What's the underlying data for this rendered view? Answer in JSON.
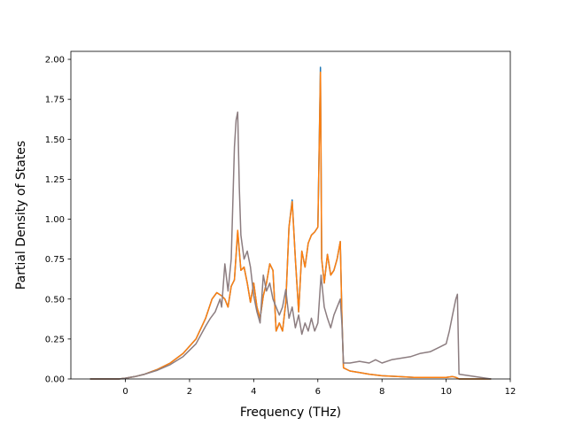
{
  "chart_data": {
    "type": "line",
    "title": "",
    "xlabel": "Frequency (THz)",
    "ylabel": "Partial Density of States",
    "xlim": [
      -1.7,
      12.0
    ],
    "ylim": [
      0.0,
      2.05
    ],
    "xticks": [
      0,
      2,
      4,
      6,
      8,
      10,
      12
    ],
    "xtick_labels": [
      "0",
      "2",
      "4",
      "6",
      "8",
      "10",
      "12"
    ],
    "yticks": [
      0.0,
      0.25,
      0.5,
      0.75,
      1.0,
      1.25,
      1.5,
      1.75,
      2.0
    ],
    "ytick_labels": [
      "0.00",
      "0.25",
      "0.50",
      "0.75",
      "1.00",
      "1.25",
      "1.50",
      "1.75",
      "2.00"
    ],
    "grid": false,
    "legend": "none",
    "series": [
      {
        "color": "#1f77b4",
        "x": [
          -1.1,
          -0.2,
          0.0,
          0.3,
          0.6,
          1.0,
          1.4,
          1.8,
          2.2,
          2.5,
          2.7,
          2.85,
          3.0,
          3.1,
          3.2,
          3.3,
          3.4,
          3.5,
          3.6,
          3.7,
          3.8,
          3.9,
          4.0,
          4.1,
          4.2,
          4.3,
          4.4,
          4.5,
          4.6,
          4.7,
          4.8,
          4.9,
          5.0,
          5.1,
          5.2,
          5.3,
          5.4,
          5.5,
          5.6,
          5.7,
          5.8,
          5.9,
          6.0,
          6.08,
          6.12,
          6.2,
          6.3,
          6.4,
          6.5,
          6.6,
          6.7,
          6.75,
          6.8,
          7.0,
          7.3,
          7.6,
          8.0,
          8.5,
          9.0,
          9.5,
          10.0,
          10.2,
          10.3,
          10.35,
          10.4,
          11.4
        ],
        "y": [
          0.0,
          0.0,
          0.005,
          0.015,
          0.03,
          0.06,
          0.1,
          0.16,
          0.25,
          0.38,
          0.5,
          0.54,
          0.52,
          0.5,
          0.45,
          0.58,
          0.62,
          0.92,
          0.68,
          0.7,
          0.6,
          0.48,
          0.6,
          0.45,
          0.38,
          0.52,
          0.6,
          0.72,
          0.68,
          0.3,
          0.35,
          0.3,
          0.48,
          0.95,
          1.12,
          0.75,
          0.42,
          0.8,
          0.7,
          0.85,
          0.9,
          0.92,
          0.95,
          1.95,
          0.75,
          0.6,
          0.78,
          0.65,
          0.68,
          0.75,
          0.86,
          0.4,
          0.07,
          0.05,
          0.04,
          0.03,
          0.02,
          0.015,
          0.01,
          0.01,
          0.01,
          0.015,
          0.01,
          0.005,
          0.0,
          0.0
        ]
      },
      {
        "color": "#ff7f0e",
        "x": [
          -1.1,
          -0.2,
          0.0,
          0.3,
          0.6,
          1.0,
          1.4,
          1.8,
          2.2,
          2.5,
          2.7,
          2.85,
          3.0,
          3.1,
          3.2,
          3.3,
          3.4,
          3.5,
          3.6,
          3.7,
          3.8,
          3.9,
          4.0,
          4.1,
          4.2,
          4.3,
          4.4,
          4.5,
          4.6,
          4.7,
          4.8,
          4.9,
          5.0,
          5.1,
          5.2,
          5.3,
          5.4,
          5.5,
          5.6,
          5.7,
          5.8,
          5.9,
          6.0,
          6.08,
          6.12,
          6.2,
          6.3,
          6.4,
          6.5,
          6.6,
          6.7,
          6.75,
          6.8,
          7.0,
          7.3,
          7.6,
          8.0,
          8.5,
          9.0,
          9.5,
          10.0,
          10.2,
          10.3,
          10.35,
          10.4,
          11.4
        ],
        "y": [
          0.0,
          0.0,
          0.005,
          0.015,
          0.03,
          0.06,
          0.1,
          0.16,
          0.25,
          0.38,
          0.5,
          0.54,
          0.52,
          0.5,
          0.45,
          0.58,
          0.62,
          0.93,
          0.68,
          0.7,
          0.6,
          0.48,
          0.6,
          0.45,
          0.38,
          0.52,
          0.6,
          0.72,
          0.68,
          0.3,
          0.35,
          0.3,
          0.48,
          0.95,
          1.11,
          0.75,
          0.42,
          0.8,
          0.7,
          0.85,
          0.9,
          0.92,
          0.95,
          1.92,
          0.75,
          0.6,
          0.78,
          0.65,
          0.68,
          0.75,
          0.86,
          0.4,
          0.07,
          0.05,
          0.04,
          0.03,
          0.02,
          0.015,
          0.01,
          0.01,
          0.01,
          0.015,
          0.01,
          0.005,
          0.0,
          0.0
        ]
      },
      {
        "color": "#8c7d80",
        "x": [
          -1.1,
          -0.2,
          0.0,
          0.3,
          0.6,
          1.0,
          1.4,
          1.8,
          2.2,
          2.5,
          2.65,
          2.8,
          2.95,
          3.0,
          3.1,
          3.2,
          3.3,
          3.4,
          3.45,
          3.5,
          3.55,
          3.6,
          3.7,
          3.8,
          3.9,
          4.0,
          4.1,
          4.2,
          4.3,
          4.4,
          4.5,
          4.6,
          4.7,
          4.8,
          4.9,
          5.0,
          5.1,
          5.2,
          5.3,
          5.4,
          5.5,
          5.6,
          5.7,
          5.8,
          5.9,
          6.0,
          6.1,
          6.2,
          6.3,
          6.4,
          6.5,
          6.6,
          6.7,
          6.75,
          6.8,
          7.0,
          7.3,
          7.6,
          7.8,
          8.0,
          8.3,
          8.6,
          8.9,
          9.2,
          9.5,
          9.8,
          10.0,
          10.1,
          10.2,
          10.3,
          10.35,
          10.4,
          11.4
        ],
        "y": [
          0.0,
          0.0,
          0.005,
          0.015,
          0.03,
          0.055,
          0.09,
          0.14,
          0.22,
          0.33,
          0.38,
          0.42,
          0.5,
          0.45,
          0.72,
          0.55,
          0.75,
          1.45,
          1.62,
          1.67,
          1.2,
          0.9,
          0.75,
          0.8,
          0.7,
          0.52,
          0.42,
          0.35,
          0.65,
          0.55,
          0.6,
          0.5,
          0.45,
          0.4,
          0.45,
          0.56,
          0.38,
          0.45,
          0.32,
          0.4,
          0.28,
          0.35,
          0.3,
          0.38,
          0.3,
          0.35,
          0.65,
          0.45,
          0.38,
          0.32,
          0.4,
          0.45,
          0.5,
          0.35,
          0.1,
          0.1,
          0.11,
          0.1,
          0.12,
          0.1,
          0.12,
          0.13,
          0.14,
          0.16,
          0.17,
          0.2,
          0.22,
          0.3,
          0.4,
          0.5,
          0.53,
          0.03,
          0.0
        ]
      }
    ]
  }
}
